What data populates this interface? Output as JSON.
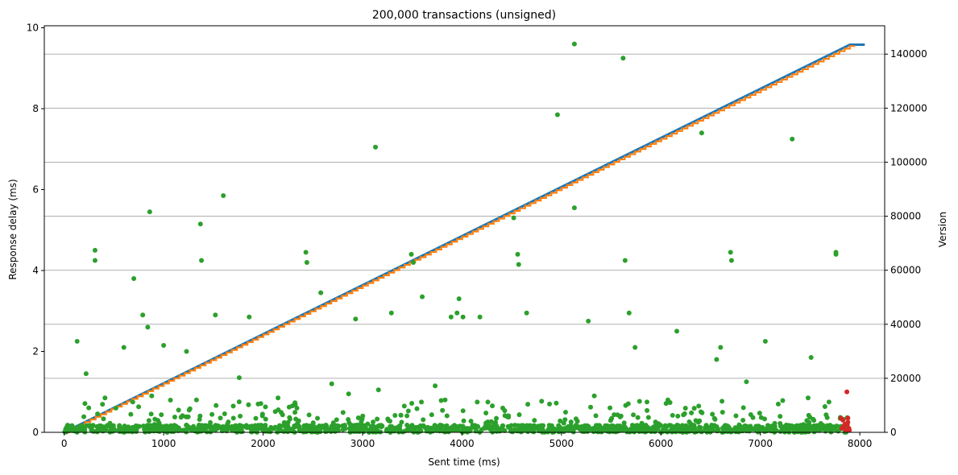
{
  "chart_data": {
    "type": "scatter",
    "title": "200,000 transactions (unsigned)",
    "xlabel": "Sent time (ms)",
    "ylabel": "Response delay (ms)",
    "y2label": "Version",
    "xlim": [
      -200,
      8250
    ],
    "ylim": [
      0,
      10.05
    ],
    "y2lim": [
      0,
      150500
    ],
    "x_ticks": [
      0,
      1000,
      2000,
      3000,
      4000,
      5000,
      6000,
      7000,
      8000
    ],
    "y_ticks": [
      0,
      2,
      4,
      6,
      8,
      10
    ],
    "y2_ticks": [
      0,
      20000,
      40000,
      60000,
      80000,
      100000,
      120000,
      140000
    ],
    "grid": "horizontal gridlines at right-axis ticks",
    "colors": {
      "blue": "#1f77b4",
      "orange": "#ff7f0e",
      "green": "#2ca02c",
      "red": "#d62728",
      "grid": "#b0b0b0"
    },
    "series": [
      {
        "axis": "right",
        "kind": "line",
        "color": "#1f77b4",
        "x": [
          0,
          7900
        ],
        "y": [
          0,
          143500
        ]
      },
      {
        "axis": "right",
        "kind": "step",
        "color": "#ff7f0e",
        "x": [
          0,
          7900
        ],
        "y": [
          0,
          143000
        ]
      },
      {
        "axis": "left",
        "kind": "scatter",
        "color": "#2ca02c",
        "x": [
          130,
          310,
          310,
          600,
          700,
          790,
          840,
          860,
          1000,
          1230,
          1370,
          1380,
          1520,
          1600,
          1760,
          1860,
          2430,
          2440,
          2580,
          2930,
          3130,
          3290,
          3490,
          3510,
          3600,
          3890,
          3950,
          3970,
          4010,
          4180,
          4520,
          4560,
          4570,
          4650,
          4960,
          5130,
          5130,
          5270,
          5620,
          5640,
          5680,
          5740,
          6160,
          6410,
          6560,
          6600,
          6700,
          6710,
          7050,
          7320,
          7510,
          7760,
          7760,
          220,
          410,
          520,
          690,
          880,
          1150,
          1330,
          1700,
          1950,
          2150,
          2340,
          2690,
          2860,
          3160,
          3420,
          3730,
          3830,
          4260,
          4410,
          4880,
          5330,
          5860,
          6070,
          6380,
          6860,
          7180,
          7480,
          7690
        ],
        "y": [
          2.25,
          4.5,
          4.25,
          2.1,
          3.8,
          2.9,
          2.6,
          5.45,
          2.15,
          2.0,
          5.15,
          4.25,
          2.9,
          5.85,
          1.35,
          2.85,
          4.45,
          4.2,
          3.45,
          2.8,
          7.05,
          2.95,
          4.4,
          4.2,
          3.35,
          2.85,
          2.95,
          3.3,
          2.85,
          2.85,
          5.3,
          4.4,
          4.15,
          2.95,
          7.85,
          9.6,
          5.55,
          2.75,
          9.25,
          4.25,
          2.95,
          2.1,
          2.5,
          7.4,
          1.8,
          2.1,
          4.45,
          4.25,
          2.25,
          7.25,
          1.85,
          4.45,
          4.4,
          1.45,
          0.85,
          0.6,
          0.75,
          0.9,
          0.55,
          0.8,
          0.65,
          0.7,
          0.85,
          0.6,
          1.2,
          0.95,
          1.05,
          0.65,
          1.15,
          0.8,
          0.75,
          0.6,
          0.7,
          0.9,
          0.75,
          0.8,
          0.65,
          1.25,
          0.7,
          0.85,
          0.75
        ]
      },
      {
        "axis": "left",
        "kind": "scatter",
        "color": "#d62728",
        "x": [
          7810,
          7830,
          7850,
          7870,
          7880,
          7880,
          7890,
          7860,
          7840,
          7820,
          7895,
          7875
        ],
        "y": [
          0.35,
          0.3,
          0.2,
          1.0,
          0.35,
          0.25,
          0.1,
          0.05,
          0.15,
          0.1,
          0.05,
          0.2
        ]
      }
    ]
  }
}
